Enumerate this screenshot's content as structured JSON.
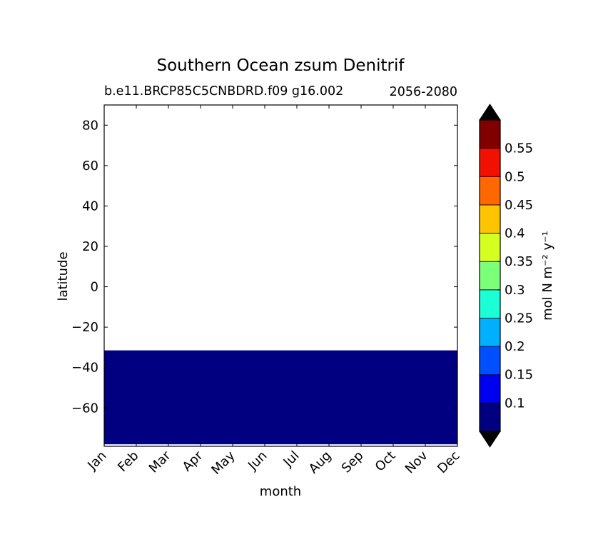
{
  "chart_data": {
    "type": "heatmap",
    "title": "Southern Ocean zsum Denitrif",
    "subtitle_left": "b.e11.BRCP85C5CNBDRD.f09 g16.002",
    "subtitle_right": "2056-2080",
    "xlabel": "month",
    "ylabel": "latitude",
    "x_categories": [
      "Jan",
      "Feb",
      "Mar",
      "Apr",
      "May",
      "Jun",
      "Jul",
      "Aug",
      "Sep",
      "Oct",
      "Nov",
      "Dec"
    ],
    "ylim": [
      -79,
      90
    ],
    "y_ticks": [
      80,
      60,
      40,
      20,
      0,
      -20,
      -40,
      -60
    ],
    "y_tick_labels": [
      "80",
      "60",
      "40",
      "20",
      "0",
      "−20",
      "−40",
      "−60"
    ],
    "filled_region": {
      "lat_min": -78,
      "lat_max": -31.5,
      "value": 0.07
    },
    "colorbar": {
      "label": "mol N m⁻² y⁻¹",
      "levels": [
        0.05,
        0.1,
        0.15,
        0.2,
        0.25,
        0.3,
        0.35,
        0.4,
        0.45,
        0.5,
        0.55,
        0.6
      ],
      "tick_labels": [
        "0.1",
        "0.15",
        "0.2",
        "0.25",
        "0.3",
        "0.35",
        "0.4",
        "0.45",
        "0.5",
        "0.55"
      ],
      "colors": [
        "#000080",
        "#0000f0",
        "#0050ff",
        "#00b0ff",
        "#1affd5",
        "#7cff79",
        "#d5ff1f",
        "#ffc400",
        "#ff6800",
        "#f21000",
        "#800000"
      ],
      "extend_under_color": "#000000",
      "extend_over_color": "#000000"
    }
  }
}
